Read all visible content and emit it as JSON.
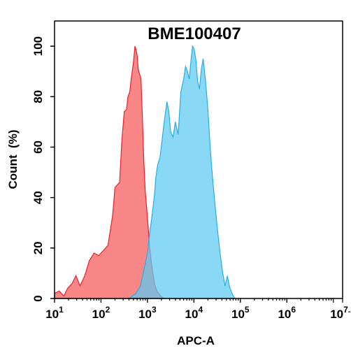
{
  "chart_data": {
    "type": "area",
    "title": "BME100407",
    "xlabel": "APC-A",
    "ylabel": "Count  (%)",
    "x_scale": "log10",
    "xlim": [
      1,
      7.2
    ],
    "ylim": [
      0,
      110
    ],
    "y_ticks": [
      0,
      20,
      40,
      60,
      80,
      100
    ],
    "x_tick_labels": [
      {
        "base": "10",
        "exp": "1",
        "log": 1
      },
      {
        "base": "10",
        "exp": "2",
        "log": 2
      },
      {
        "base": "10",
        "exp": "3",
        "log": 3
      },
      {
        "base": "10",
        "exp": "4",
        "log": 4
      },
      {
        "base": "10",
        "exp": "5",
        "log": 5
      },
      {
        "base": "10",
        "exp": "6",
        "log": 6
      },
      {
        "base": "10",
        "exp": "7.2",
        "log": 7.2
      }
    ],
    "series": [
      {
        "fill": "#fa7a7a",
        "stroke": "#e8202a",
        "points": [
          [
            1.0,
            2
          ],
          [
            1.1,
            3
          ],
          [
            1.2,
            1
          ],
          [
            1.28,
            4
          ],
          [
            1.38,
            6
          ],
          [
            1.46,
            9
          ],
          [
            1.55,
            5
          ],
          [
            1.65,
            9
          ],
          [
            1.75,
            15
          ],
          [
            1.85,
            18
          ],
          [
            1.95,
            17
          ],
          [
            2.05,
            19
          ],
          [
            2.15,
            21
          ],
          [
            2.25,
            33
          ],
          [
            2.3,
            44
          ],
          [
            2.4,
            46
          ],
          [
            2.45,
            63
          ],
          [
            2.5,
            74
          ],
          [
            2.55,
            75
          ],
          [
            2.58,
            80
          ],
          [
            2.62,
            82
          ],
          [
            2.65,
            87
          ],
          [
            2.68,
            91
          ],
          [
            2.7,
            94
          ],
          [
            2.73,
            100
          ],
          [
            2.75,
            99
          ],
          [
            2.78,
            96
          ],
          [
            2.8,
            91
          ],
          [
            2.83,
            89
          ],
          [
            2.86,
            87
          ],
          [
            2.89,
            72
          ],
          [
            2.92,
            55
          ],
          [
            2.95,
            43
          ],
          [
            3.0,
            32
          ],
          [
            3.05,
            20
          ],
          [
            3.1,
            12
          ],
          [
            3.15,
            6
          ],
          [
            3.2,
            3
          ],
          [
            3.28,
            1
          ],
          [
            3.35,
            0
          ]
        ]
      },
      {
        "fill": "#5ccbf2",
        "stroke": "#26aee4",
        "points": [
          [
            2.6,
            0
          ],
          [
            2.75,
            2
          ],
          [
            2.85,
            5
          ],
          [
            2.92,
            11
          ],
          [
            3.0,
            18
          ],
          [
            3.05,
            26
          ],
          [
            3.1,
            33
          ],
          [
            3.15,
            41
          ],
          [
            3.18,
            48
          ],
          [
            3.22,
            53
          ],
          [
            3.27,
            56
          ],
          [
            3.31,
            62
          ],
          [
            3.36,
            70
          ],
          [
            3.42,
            78
          ],
          [
            3.46,
            74
          ],
          [
            3.5,
            66
          ],
          [
            3.55,
            64
          ],
          [
            3.6,
            70
          ],
          [
            3.66,
            65
          ],
          [
            3.72,
            82
          ],
          [
            3.78,
            87
          ],
          [
            3.82,
            92
          ],
          [
            3.86,
            90
          ],
          [
            3.9,
            87
          ],
          [
            3.94,
            95
          ],
          [
            3.97,
            100
          ],
          [
            4.0,
            99
          ],
          [
            4.04,
            95
          ],
          [
            4.08,
            86
          ],
          [
            4.12,
            83
          ],
          [
            4.16,
            91
          ],
          [
            4.2,
            95
          ],
          [
            4.25,
            86
          ],
          [
            4.3,
            75
          ],
          [
            4.35,
            60
          ],
          [
            4.4,
            48
          ],
          [
            4.46,
            36
          ],
          [
            4.52,
            25
          ],
          [
            4.57,
            17
          ],
          [
            4.62,
            10
          ],
          [
            4.67,
            5
          ],
          [
            4.72,
            9
          ],
          [
            4.76,
            5
          ],
          [
            4.82,
            2
          ],
          [
            4.88,
            0
          ]
        ]
      }
    ]
  }
}
